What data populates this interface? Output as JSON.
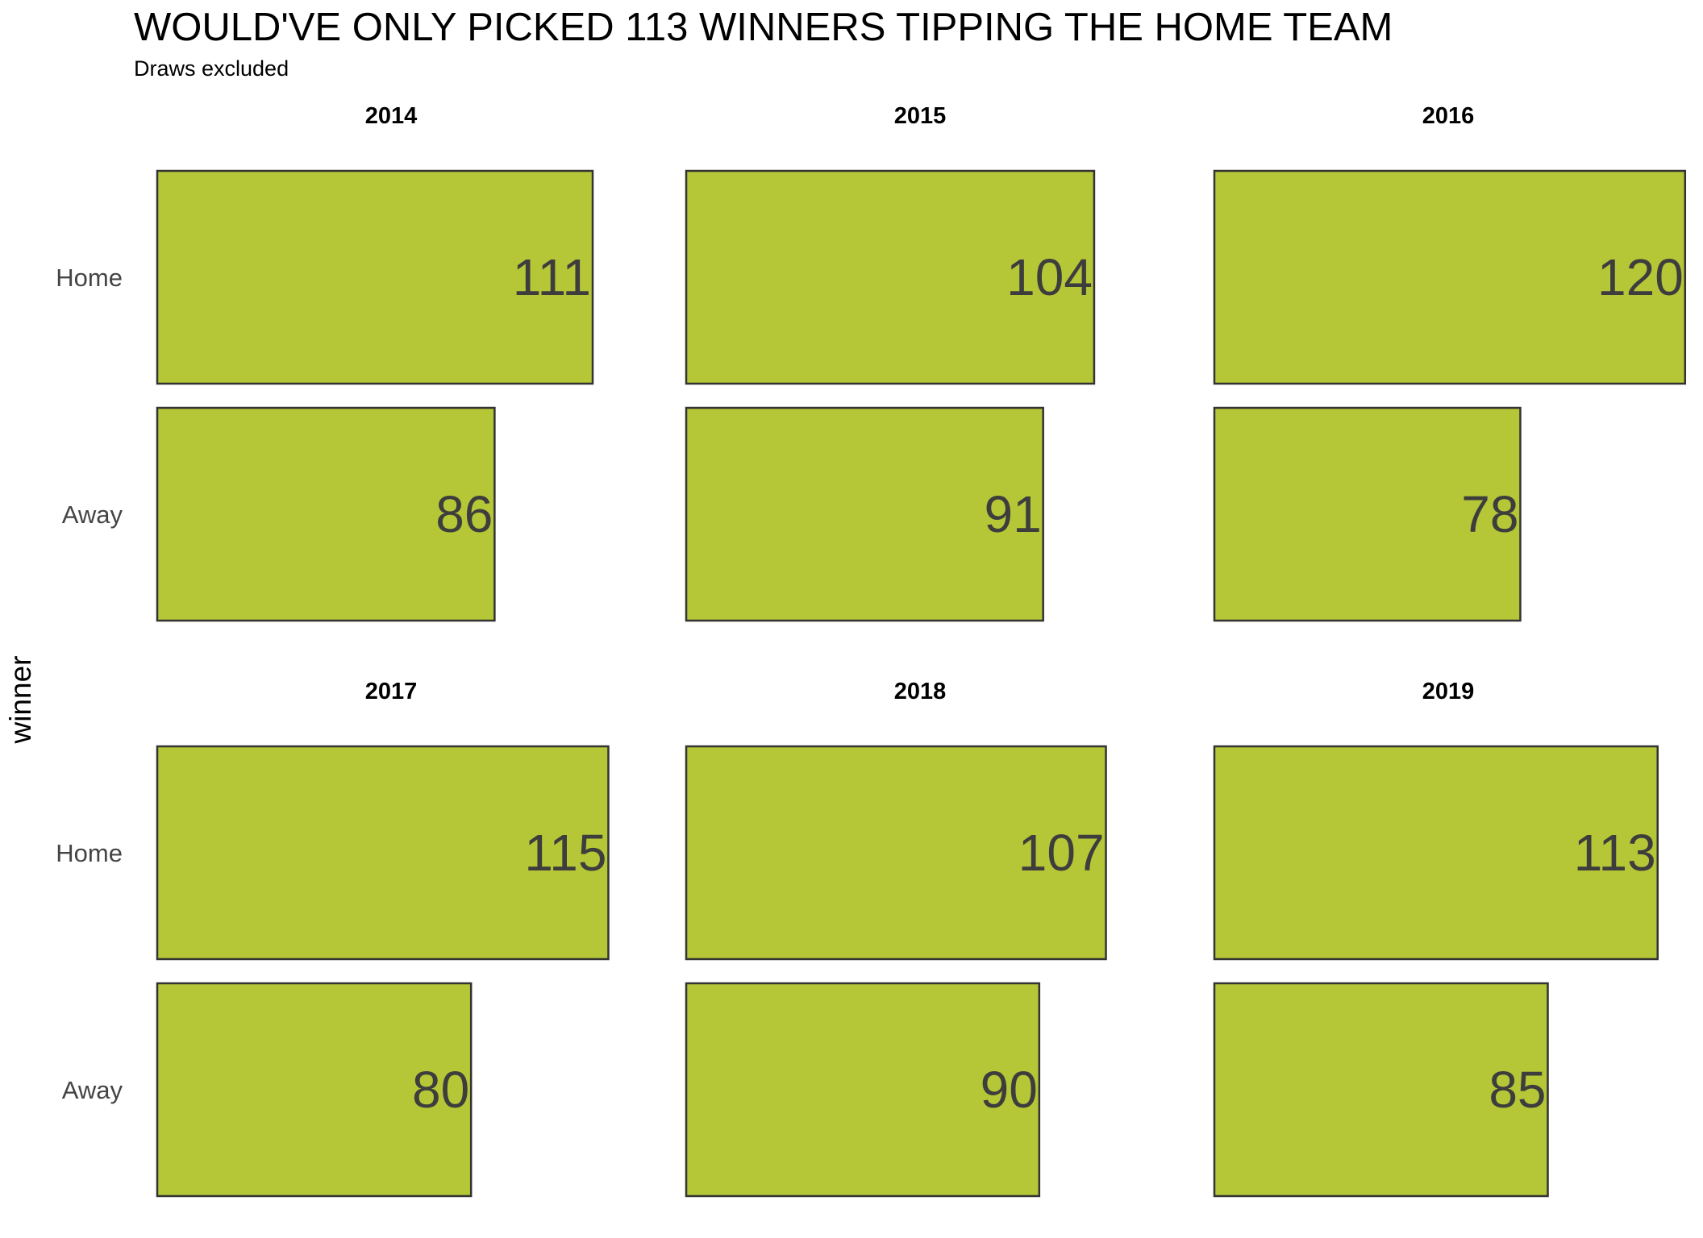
{
  "chart_data": {
    "type": "bar",
    "orientation": "horizontal",
    "title": "WOULD'VE ONLY PICKED 113 WINNERS TIPPING THE HOME TEAM",
    "subtitle": "Draws excluded",
    "ylabel": "winner",
    "categories": [
      "Home",
      "Away"
    ],
    "xlim": [
      0,
      120
    ],
    "grid": false,
    "bar_color": "#b5c637",
    "bar_border_color": "#333333",
    "facets": [
      {
        "label": "2014",
        "values": [
          111,
          86
        ]
      },
      {
        "label": "2015",
        "values": [
          104,
          91
        ]
      },
      {
        "label": "2016",
        "values": [
          120,
          78
        ]
      },
      {
        "label": "2017",
        "values": [
          115,
          80
        ]
      },
      {
        "label": "2018",
        "values": [
          107,
          90
        ]
      },
      {
        "label": "2019",
        "values": [
          113,
          85
        ]
      }
    ]
  }
}
